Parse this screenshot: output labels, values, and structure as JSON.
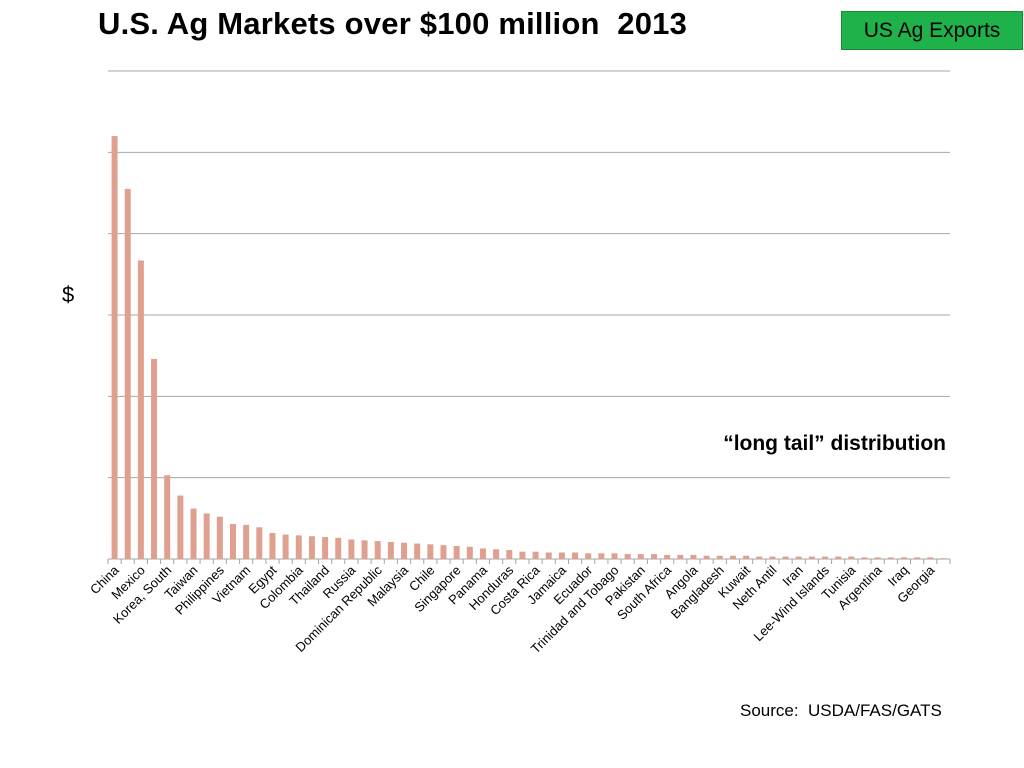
{
  "title": "U.S. Ag Markets over $100 million  2013",
  "badge": "US Ag Exports",
  "annotation": "“long tail” distribution",
  "source": "Source:  USDA/FAS/GATS",
  "colors": {
    "bar": "#e0a090",
    "grid": "#a6a6a6",
    "badge": "#1fb14a"
  },
  "chart_data": {
    "type": "bar",
    "title": "U.S. Ag Markets over $100 million  2013",
    "xlabel": "",
    "ylabel": "$",
    "grid": true,
    "legend": "none",
    "ylim": [
      0,
      600
    ],
    "categories": [
      "China",
      "",
      "Mexico",
      "",
      "Korea, South",
      "",
      "Taiwan",
      "",
      "Philippines",
      "",
      "Vietnam",
      "",
      "Egypt",
      "",
      "Colombia",
      "",
      "Thailand",
      "",
      "Russia",
      "",
      "Dominican Republic",
      "",
      "Malaysia",
      "",
      "Chile",
      "",
      "Singapore",
      "",
      "Panama",
      "",
      "Honduras",
      "",
      "Costa Rica",
      "",
      "Jamaica",
      "",
      "Ecuador",
      "",
      "Trinidad and Tobago",
      "",
      "Pakistan",
      "",
      "South Africa",
      "",
      "Angola",
      "",
      "Bangladesh",
      "",
      "Kuwait",
      "",
      "Neth Antil",
      "",
      "Iran",
      "",
      "Lee-Wind Islands",
      "",
      "Tunisia",
      "",
      "Argentina",
      "",
      "Iraq",
      "",
      "Georgia",
      ""
    ],
    "values": [
      520,
      455,
      367,
      246,
      103,
      78,
      62,
      56,
      52,
      43,
      42,
      39,
      32,
      30,
      29,
      28,
      27,
      26,
      24,
      23,
      22,
      21,
      20,
      19,
      18,
      17,
      16,
      15,
      13,
      12,
      11,
      9,
      9,
      8,
      8,
      8,
      7,
      7,
      7,
      6,
      6,
      6,
      5,
      5,
      5,
      4,
      4,
      4,
      4,
      3,
      3,
      3,
      3,
      3,
      3,
      3,
      3,
      2,
      2,
      2,
      2,
      2,
      2,
      1
    ]
  }
}
